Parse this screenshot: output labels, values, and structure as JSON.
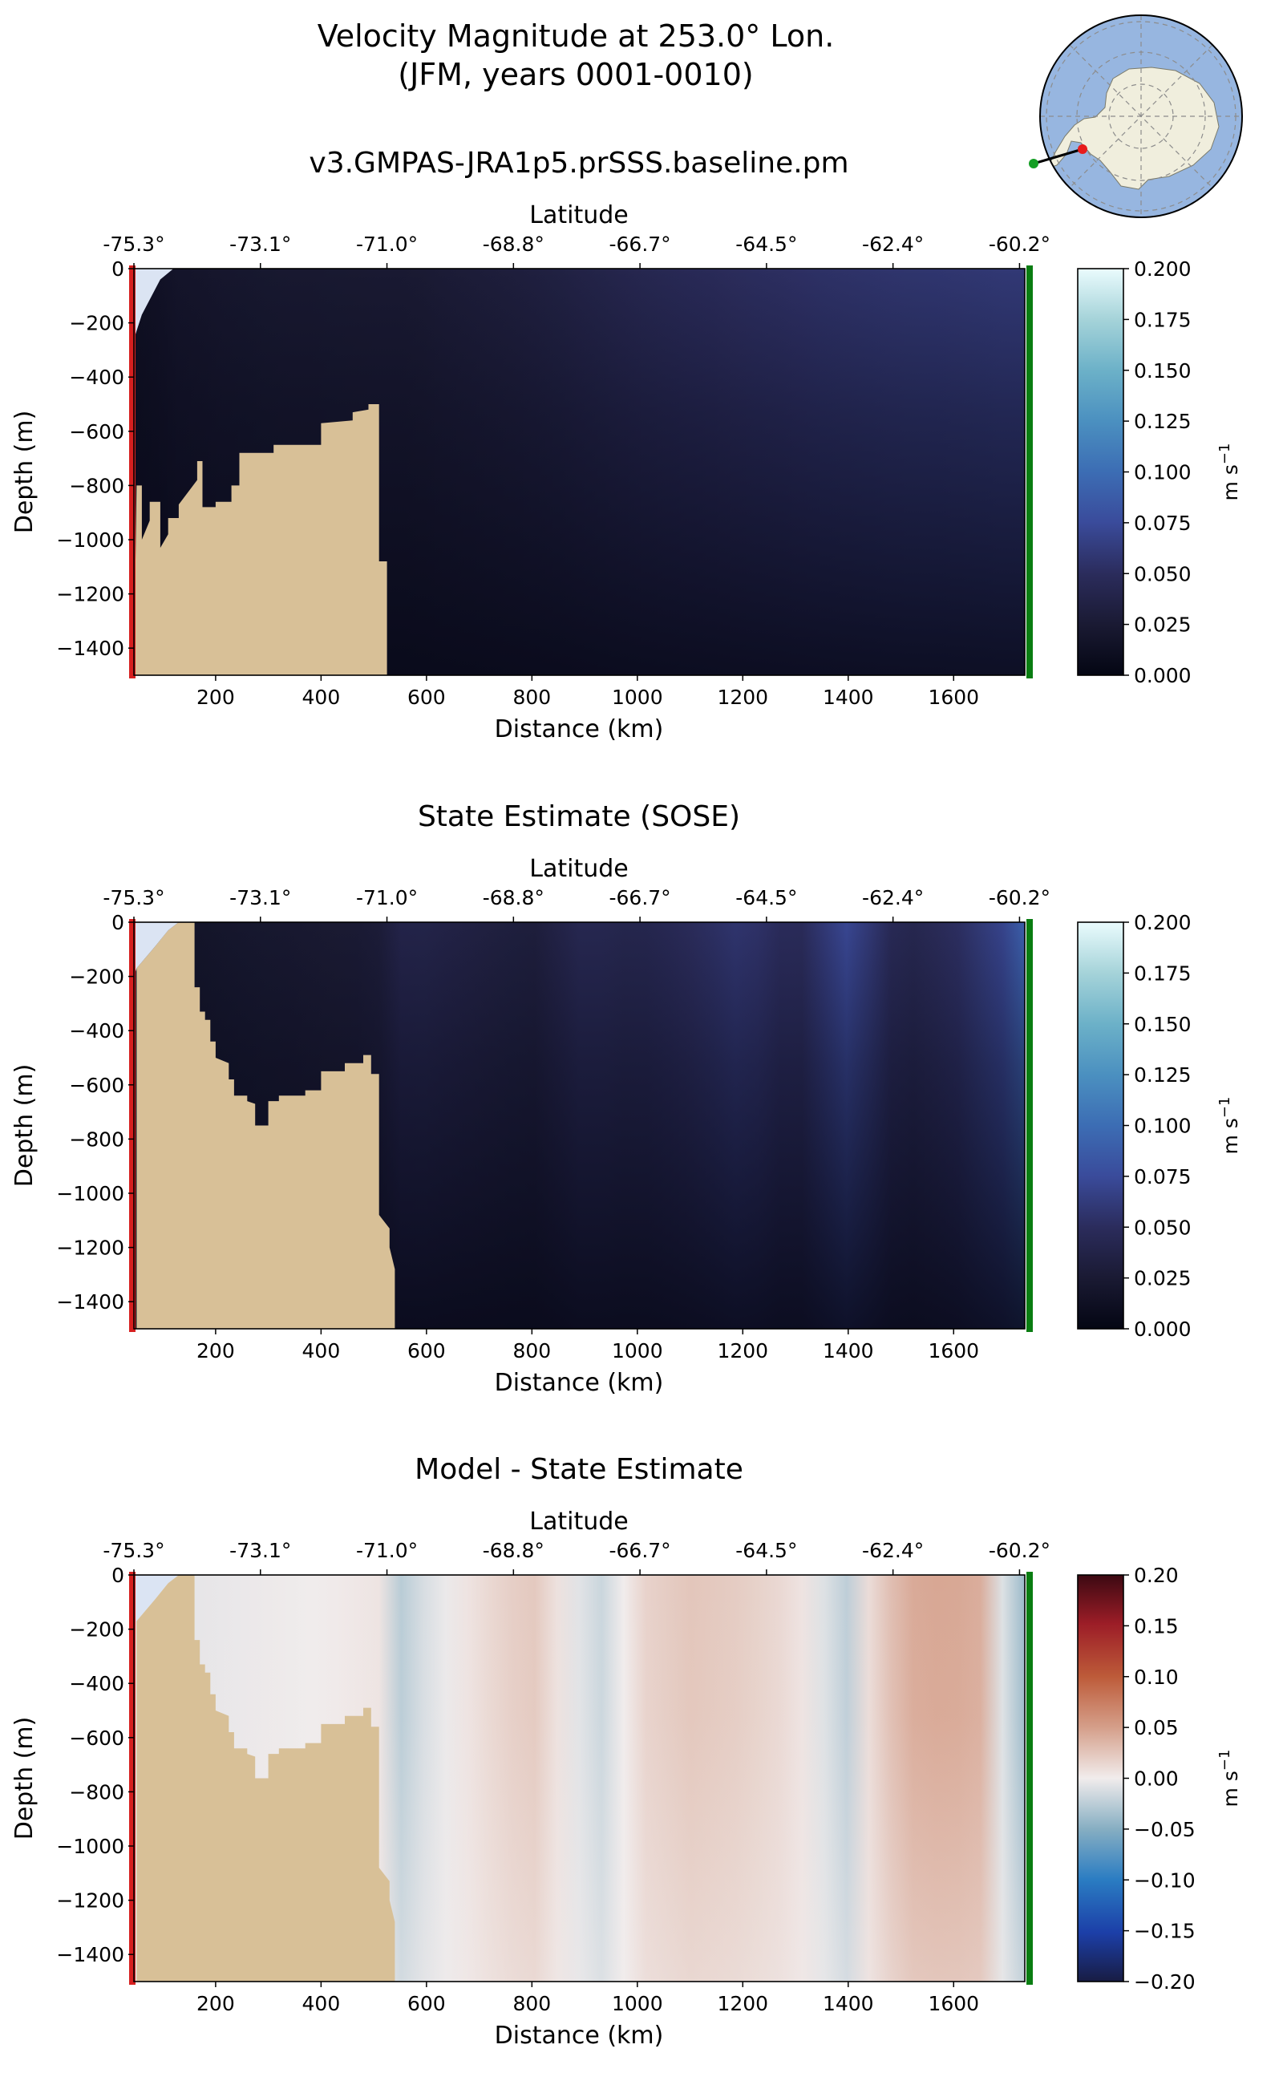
{
  "figure": {
    "title_line1": "Velocity Magnitude at 253.0° Lon.",
    "title_line2": "(JFM, years 0001-0010)"
  },
  "colors": {
    "land": "#d8c097",
    "left_marker": "#d62020",
    "right_marker": "#0a7d12",
    "inset_ocean": "#97b6e0",
    "inset_land": "#f0eedd"
  },
  "inset_map": {
    "name": "Antarctic location map",
    "transect_start": "red dot (-75.3° lat)",
    "transect_end": "green dot (-60.2° lat)"
  },
  "chart_data": [
    {
      "type": "heatmap",
      "title": "v3.GMPAS-JRA1p5.prSSS.baseline.pm",
      "xlabel": "Distance (km)",
      "ylabel": "Depth (m)",
      "top_xlabel": "Latitude",
      "xlim": [
        45,
        1735
      ],
      "ylim": [
        -1500,
        0
      ],
      "x_ticks": [
        "200",
        "400",
        "600",
        "800",
        "1000",
        "1200",
        "1400",
        "1600"
      ],
      "x_tick_values": [
        200,
        400,
        600,
        800,
        1000,
        1200,
        1400,
        1600
      ],
      "y_ticks": [
        "0",
        "−200",
        "−400",
        "−600",
        "−800",
        "−1000",
        "−1200",
        "−1400"
      ],
      "y_tick_values": [
        0,
        -200,
        -400,
        -600,
        -800,
        -1000,
        -1200,
        -1400
      ],
      "lat_ticks": [
        "-75.3°",
        "-73.1°",
        "-71.0°",
        "-68.8°",
        "-66.7°",
        "-64.5°",
        "-62.4°",
        "-60.2°"
      ],
      "lat_tick_positions_km": [
        45,
        285,
        525,
        765,
        1005,
        1245,
        1485,
        1725
      ],
      "colorbar": {
        "ticks": [
          "0.000",
          "0.025",
          "0.050",
          "0.075",
          "0.100",
          "0.125",
          "0.150",
          "0.175",
          "0.200"
        ],
        "range": [
          0,
          0.2
        ],
        "label": "m s",
        "exponent": "−1",
        "colormap": "ice"
      },
      "bathymetry": {
        "distance_km": [
          50,
          60,
          60,
          75,
          75,
          95,
          95,
          110,
          110,
          130,
          130,
          165,
          165,
          175,
          175,
          200,
          200,
          230,
          230,
          245,
          245,
          310,
          310,
          400,
          400,
          460,
          460,
          490,
          490,
          510,
          510,
          525,
          525
        ],
        "depth_m": [
          -800,
          -800,
          -1000,
          -930,
          -860,
          -860,
          -1030,
          -980,
          -920,
          -920,
          -870,
          -780,
          -710,
          -710,
          -880,
          -880,
          -860,
          -860,
          -800,
          -800,
          -680,
          -680,
          -650,
          -650,
          -570,
          -560,
          -530,
          -520,
          -500,
          -500,
          -1080,
          -1080,
          -1500
        ]
      },
      "field_surface_m_s": {
        "distance_km": [
          60,
          130,
          300,
          500,
          560,
          800,
          1000,
          1200,
          1400,
          1600,
          1725
        ],
        "value": [
          0.012,
          0.018,
          0.022,
          0.024,
          0.024,
          0.032,
          0.042,
          0.05,
          0.055,
          0.058,
          0.06
        ]
      }
    },
    {
      "type": "heatmap",
      "title": "State Estimate (SOSE)",
      "xlabel": "Distance (km)",
      "ylabel": "Depth (m)",
      "top_xlabel": "Latitude",
      "xlim": [
        45,
        1735
      ],
      "ylim": [
        -1500,
        0
      ],
      "x_ticks": [
        "200",
        "400",
        "600",
        "800",
        "1000",
        "1200",
        "1400",
        "1600"
      ],
      "x_tick_values": [
        200,
        400,
        600,
        800,
        1000,
        1200,
        1400,
        1600
      ],
      "y_ticks": [
        "0",
        "−200",
        "−400",
        "−600",
        "−800",
        "−1000",
        "−1200",
        "−1400"
      ],
      "y_tick_values": [
        0,
        -200,
        -400,
        -600,
        -800,
        -1000,
        -1200,
        -1400
      ],
      "lat_ticks": [
        "-75.3°",
        "-73.1°",
        "-71.0°",
        "-68.8°",
        "-66.7°",
        "-64.5°",
        "-62.4°",
        "-60.2°"
      ],
      "lat_tick_positions_km": [
        45,
        285,
        525,
        765,
        1005,
        1245,
        1485,
        1725
      ],
      "colorbar": {
        "ticks": [
          "0.000",
          "0.025",
          "0.050",
          "0.075",
          "0.100",
          "0.125",
          "0.150",
          "0.175",
          "0.200"
        ],
        "range": [
          0,
          0.2
        ],
        "label": "m s",
        "exponent": "−1",
        "colormap": "ice"
      },
      "bathymetry": {
        "distance_km": [
          50,
          50,
          85,
          110,
          130,
          160,
          160,
          170,
          170,
          180,
          180,
          190,
          190,
          200,
          200,
          225,
          225,
          235,
          235,
          260,
          260,
          275,
          275,
          300,
          300,
          320,
          320,
          370,
          370,
          400,
          400,
          445,
          445,
          480,
          480,
          495,
          495,
          510,
          510,
          530,
          530,
          540,
          540
        ],
        "depth_m": [
          -1500,
          -170,
          -90,
          -30,
          0,
          0,
          -240,
          -240,
          -330,
          -330,
          -360,
          -360,
          -440,
          -440,
          -500,
          -520,
          -580,
          -580,
          -640,
          -640,
          -660,
          -670,
          -750,
          -750,
          -660,
          -660,
          -640,
          -640,
          -620,
          -620,
          -550,
          -550,
          -520,
          -520,
          -490,
          -490,
          -560,
          -560,
          -1080,
          -1130,
          -1200,
          -1280,
          -1500
        ]
      },
      "field_surface_m_s": {
        "distance_km": [
          160,
          300,
          500,
          560,
          700,
          800,
          900,
          1000,
          1100,
          1200,
          1300,
          1400,
          1500,
          1600,
          1700,
          1725
        ],
        "value": [
          0.018,
          0.022,
          0.026,
          0.04,
          0.034,
          0.03,
          0.044,
          0.04,
          0.048,
          0.058,
          0.045,
          0.072,
          0.04,
          0.05,
          0.07,
          0.09
        ]
      }
    },
    {
      "type": "heatmap",
      "title": "Model - State Estimate",
      "xlabel": "Distance (km)",
      "ylabel": "Depth (m)",
      "top_xlabel": "Latitude",
      "xlim": [
        45,
        1735
      ],
      "ylim": [
        -1500,
        0
      ],
      "x_ticks": [
        "200",
        "400",
        "600",
        "800",
        "1000",
        "1200",
        "1400",
        "1600"
      ],
      "x_tick_values": [
        200,
        400,
        600,
        800,
        1000,
        1200,
        1400,
        1600
      ],
      "y_ticks": [
        "0",
        "−200",
        "−400",
        "−600",
        "−800",
        "−1000",
        "−1200",
        "−1400"
      ],
      "y_tick_values": [
        0,
        -200,
        -400,
        -600,
        -800,
        -1000,
        -1200,
        -1400
      ],
      "lat_ticks": [
        "-75.3°",
        "-73.1°",
        "-71.0°",
        "-68.8°",
        "-66.7°",
        "-64.5°",
        "-62.4°",
        "-60.2°"
      ],
      "lat_tick_positions_km": [
        45,
        285,
        525,
        765,
        1005,
        1245,
        1485,
        1725
      ],
      "colorbar": {
        "ticks": [
          "−0.20",
          "−0.15",
          "−0.10",
          "−0.05",
          "0.00",
          "0.05",
          "0.10",
          "0.15",
          "0.20"
        ],
        "range": [
          -0.2,
          0.2
        ],
        "label": "m s",
        "exponent": "−1",
        "colormap": "balance"
      },
      "bathymetry": {
        "distance_km": [
          50,
          50,
          85,
          110,
          130,
          160,
          160,
          170,
          170,
          180,
          180,
          190,
          190,
          200,
          200,
          225,
          225,
          235,
          235,
          260,
          260,
          275,
          275,
          300,
          300,
          320,
          320,
          370,
          370,
          400,
          400,
          445,
          445,
          480,
          480,
          495,
          495,
          510,
          510,
          530,
          530,
          540,
          540
        ],
        "depth_m": [
          -1500,
          -170,
          -90,
          -30,
          0,
          0,
          -240,
          -240,
          -330,
          -330,
          -360,
          -360,
          -440,
          -440,
          -500,
          -520,
          -580,
          -580,
          -640,
          -640,
          -660,
          -670,
          -750,
          -750,
          -660,
          -660,
          -640,
          -640,
          -620,
          -620,
          -550,
          -550,
          -520,
          -520,
          -490,
          -490,
          -560,
          -560,
          -1080,
          -1130,
          -1200,
          -1280,
          -1500
        ]
      },
      "field_surface_m_s": {
        "distance_km": [
          160,
          250,
          400,
          510,
          540,
          600,
          700,
          800,
          880,
          940,
          1000,
          1100,
          1200,
          1300,
          1400,
          1450,
          1530,
          1600,
          1660,
          1700,
          1725
        ],
        "value": [
          -0.005,
          -0.003,
          0.0,
          0.005,
          -0.03,
          -0.01,
          0.01,
          0.025,
          -0.005,
          -0.02,
          0.015,
          0.025,
          0.02,
          0.01,
          -0.025,
          0.02,
          0.045,
          0.045,
          0.04,
          -0.02,
          -0.04
        ]
      }
    }
  ]
}
